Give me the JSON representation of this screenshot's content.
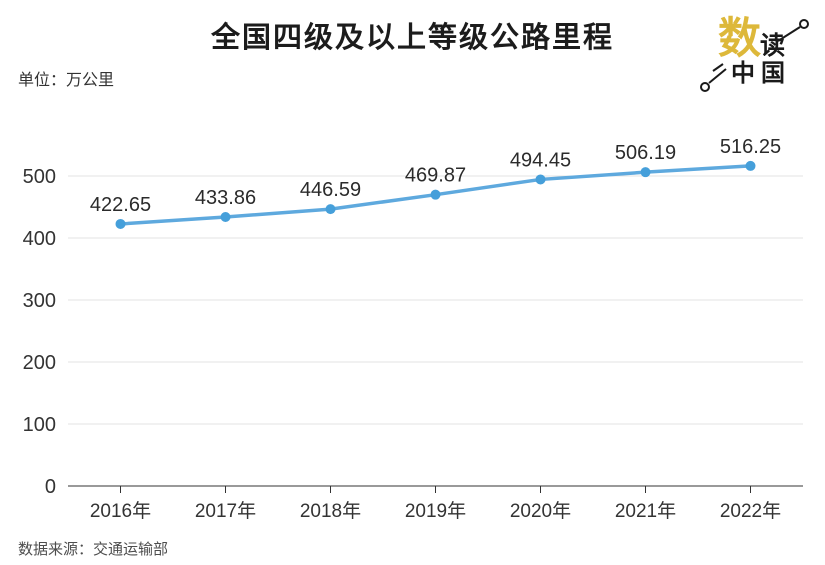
{
  "header": {
    "title": "全国四级及以上等级公路里程",
    "unit_label": "单位：万公里"
  },
  "logo": {
    "char_gold": "数",
    "char_black": "读",
    "bottom_text": "中国",
    "gold_color": "#ddb83a",
    "ink_color": "#1a1a1a"
  },
  "footer": {
    "source": "数据来源：交通运输部"
  },
  "chart_data": {
    "type": "line",
    "title": "全国四级及以上等级公路里程",
    "unit": "万公里",
    "categories": [
      "2016年",
      "2017年",
      "2018年",
      "2019年",
      "2020年",
      "2021年",
      "2022年"
    ],
    "values": [
      422.65,
      433.86,
      446.59,
      469.87,
      494.45,
      506.19,
      516.25
    ],
    "value_labels": [
      "422.65",
      "433.86",
      "446.59",
      "469.87",
      "494.45",
      "506.19",
      "516.25"
    ],
    "xlabel": "",
    "ylabel": "",
    "ylim": [
      0,
      550
    ],
    "yticks": [
      0,
      100,
      200,
      300,
      400,
      500
    ],
    "grid": true,
    "legend": "none",
    "line_color": "#5ea9de",
    "point_color": "#459fda",
    "grid_color": "#e3e3e3",
    "axis_color": "#333333",
    "text_color": "#333333",
    "label_color": "#2b2b2b"
  }
}
